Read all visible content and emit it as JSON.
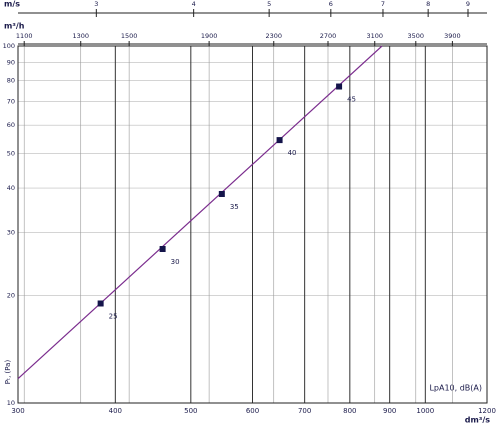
{
  "chart_data": {
    "type": "scatter",
    "x_label": "dm³/s",
    "y_label": "Pₜ, (Pa)",
    "log_x": true,
    "log_y": true,
    "grid": true,
    "xlim": [
      300,
      1200
    ],
    "xticks": [
      300,
      400,
      500,
      600,
      700,
      800,
      900,
      1000,
      1200
    ],
    "ylim": [
      10,
      100
    ],
    "yticks": [
      10,
      20,
      30,
      40,
      50,
      60,
      70,
      80,
      90,
      100
    ],
    "series": [
      {
        "color": "#14144a",
        "x": [
          383,
          460,
          548,
          650,
          775
        ],
        "values": [
          19,
          27,
          38.5,
          54.5,
          77
        ],
        "sound_levels": [
          25,
          30,
          35,
          40,
          45
        ]
      }
    ],
    "fit_line": {
      "color": "#7b2d8e",
      "x": [
        300,
        880
      ],
      "values": [
        11.7,
        100
      ]
    },
    "annotation": "LpA10, dB(A)",
    "top_axes": [
      {
        "label": "m/s",
        "xlim": [
          2.38,
          9.52
        ],
        "xticks": [
          3,
          4,
          5,
          6,
          7,
          8,
          9
        ]
      },
      {
        "label": "m³/h",
        "xlim": [
          1080,
          4320
        ],
        "xticks": [
          1100,
          1300,
          1500,
          1900,
          2300,
          2700,
          3100,
          3500,
          3900
        ]
      }
    ]
  }
}
